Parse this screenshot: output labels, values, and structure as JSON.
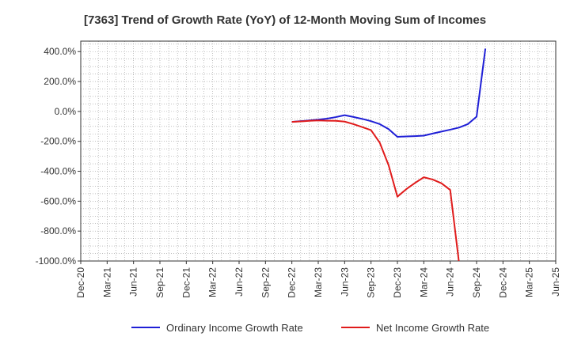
{
  "chart_data": {
    "type": "line",
    "title": "[7363]  Trend of Growth Rate (YoY) of 12-Month Moving Sum of Incomes",
    "xlabel": "",
    "ylabel": "",
    "x_ticks": [
      "Dec-20",
      "Mar-21",
      "Jun-21",
      "Sep-21",
      "Dec-21",
      "Mar-22",
      "Jun-22",
      "Sep-22",
      "Dec-22",
      "Mar-23",
      "Jun-23",
      "Sep-23",
      "Dec-23",
      "Mar-24",
      "Jun-24",
      "Sep-24",
      "Dec-24",
      "Mar-25",
      "Jun-25"
    ],
    "y_ticks": [
      400,
      200,
      0,
      -200,
      -400,
      -600,
      -800,
      -1000
    ],
    "y_tick_labels": [
      "400.0%",
      "200.0%",
      "0.0%",
      "-200.0%",
      "-400.0%",
      "-600.0%",
      "-800.0%",
      "-1000.0%"
    ],
    "ylim": [
      -1000,
      470
    ],
    "grid": true,
    "legend_position": "bottom",
    "series": [
      {
        "name": "Ordinary Income Growth Rate",
        "color": "#1f1fd6",
        "points": [
          [
            "Dec-22",
            -70
          ],
          [
            "Jan-23",
            -65
          ],
          [
            "Feb-23",
            -60
          ],
          [
            "Mar-23",
            -55
          ],
          [
            "Apr-23",
            -48
          ],
          [
            "May-23",
            -38
          ],
          [
            "Jun-23",
            -25
          ],
          [
            "Jul-23",
            -37
          ],
          [
            "Aug-23",
            -50
          ],
          [
            "Sep-23",
            -65
          ],
          [
            "Oct-23",
            -85
          ],
          [
            "Nov-23",
            -118
          ],
          [
            "Dec-23",
            -170
          ],
          [
            "Jan-24",
            -167
          ],
          [
            "Feb-24",
            -165
          ],
          [
            "Mar-24",
            -162
          ],
          [
            "Apr-24",
            -148
          ],
          [
            "May-24",
            -135
          ],
          [
            "Jun-24",
            -122
          ],
          [
            "Jul-24",
            -108
          ],
          [
            "Aug-24",
            -85
          ],
          [
            "Sep-24",
            -35
          ],
          [
            "Oct-24",
            420
          ]
        ]
      },
      {
        "name": "Net Income Growth Rate",
        "color": "#e01b1b",
        "points": [
          [
            "Dec-22",
            -70
          ],
          [
            "Jan-23",
            -67
          ],
          [
            "Feb-23",
            -63
          ],
          [
            "Mar-23",
            -60
          ],
          [
            "Apr-23",
            -62
          ],
          [
            "May-23",
            -63
          ],
          [
            "Jun-23",
            -68
          ],
          [
            "Jul-23",
            -85
          ],
          [
            "Aug-23",
            -105
          ],
          [
            "Sep-23",
            -125
          ],
          [
            "Oct-23",
            -210
          ],
          [
            "Nov-23",
            -360
          ],
          [
            "Dec-23",
            -570
          ],
          [
            "Jan-24",
            -520
          ],
          [
            "Feb-24",
            -478
          ],
          [
            "Mar-24",
            -440
          ],
          [
            "Apr-24",
            -455
          ],
          [
            "May-24",
            -480
          ],
          [
            "Jun-24",
            -525
          ],
          [
            "Jul-24",
            -1010
          ]
        ]
      }
    ]
  }
}
